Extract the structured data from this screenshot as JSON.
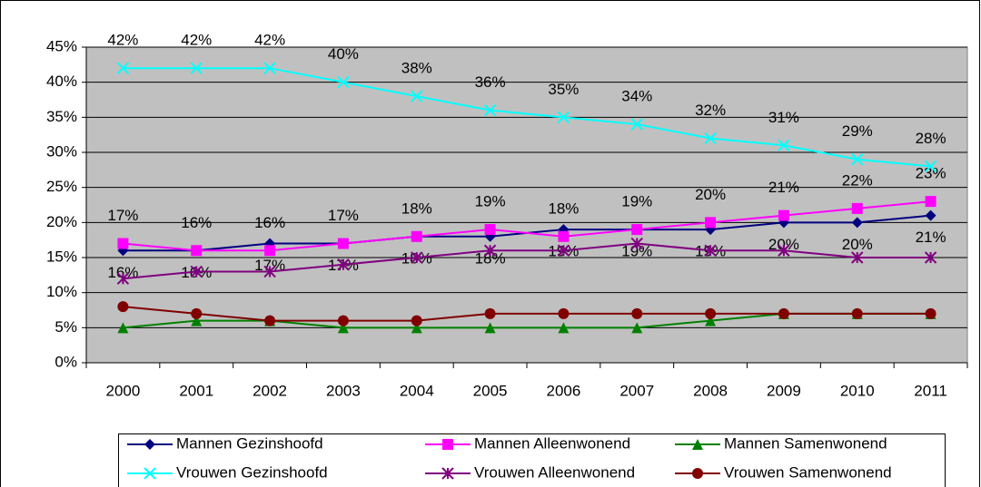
{
  "chart_data": {
    "type": "line",
    "categories": [
      "2000",
      "2001",
      "2002",
      "2003",
      "2004",
      "2005",
      "2006",
      "2007",
      "2008",
      "2009",
      "2010",
      "2011"
    ],
    "ylim": [
      0,
      45
    ],
    "yticks": [
      {
        "value": 0,
        "label": "0%"
      },
      {
        "value": 5,
        "label": "5%"
      },
      {
        "value": 10,
        "label": "10%"
      },
      {
        "value": 15,
        "label": "15%"
      },
      {
        "value": 20,
        "label": "20%"
      },
      {
        "value": 25,
        "label": "25%"
      },
      {
        "value": 30,
        "label": "30%"
      },
      {
        "value": 35,
        "label": "35%"
      },
      {
        "value": 40,
        "label": "40%"
      },
      {
        "value": 45,
        "label": "45%"
      }
    ],
    "grid": true,
    "series": [
      {
        "name": "Mannen Gezinshoofd",
        "color": "#000080",
        "marker": "diamond",
        "label_side": "below",
        "values": [
          16,
          16,
          17,
          17,
          18,
          18,
          19,
          19,
          19,
          20,
          20,
          21
        ],
        "value_labels": [
          "16%",
          "16%",
          "17%",
          "17%",
          "18%",
          "18%",
          "19%",
          "19%",
          "19%",
          "20%",
          "20%",
          "21%"
        ]
      },
      {
        "name": "Mannen Alleenwonend",
        "color": "#ff00ff",
        "marker": "square",
        "label_side": "above",
        "values": [
          17,
          16,
          16,
          17,
          18,
          19,
          18,
          19,
          20,
          21,
          22,
          23
        ],
        "value_labels": [
          "17%",
          "16%",
          "16%",
          "17%",
          "18%",
          "19%",
          "18%",
          "19%",
          "20%",
          "21%",
          "22%",
          "23%"
        ]
      },
      {
        "name": "Mannen Samenwonend",
        "color": "#008000",
        "marker": "triangle",
        "values": [
          5,
          6,
          6,
          5,
          5,
          5,
          5,
          5,
          6,
          7,
          7,
          7
        ]
      },
      {
        "name": "Vrouwen Gezinshoofd",
        "color": "#00ffff",
        "marker": "x",
        "label_side": "above",
        "values": [
          42,
          42,
          42,
          40,
          38,
          36,
          35,
          34,
          32,
          31,
          29,
          28
        ],
        "value_labels": [
          "42%",
          "42%",
          "42%",
          "40%",
          "38%",
          "36%",
          "35%",
          "34%",
          "32%",
          "31%",
          "29%",
          "28%"
        ]
      },
      {
        "name": "Vrouwen Alleenwonend",
        "color": "#800080",
        "marker": "asterisk",
        "values": [
          12,
          13,
          13,
          14,
          15,
          16,
          16,
          17,
          16,
          16,
          15,
          15
        ]
      },
      {
        "name": "Vrouwen Samenwonend",
        "color": "#800000",
        "marker": "circle",
        "values": [
          8,
          7,
          6,
          6,
          6,
          7,
          7,
          7,
          7,
          7,
          7,
          7
        ]
      }
    ]
  }
}
